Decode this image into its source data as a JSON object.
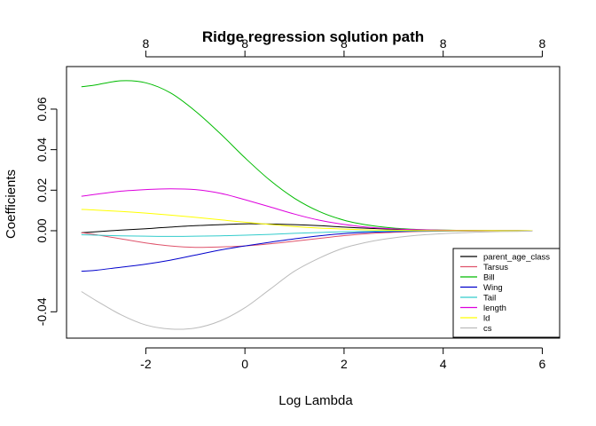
{
  "chart_data": {
    "type": "line",
    "title": "Ridge regression solution path",
    "xlabel": "Log Lambda",
    "ylabel": "Coefficients",
    "xlim": [
      -3.6,
      6.35
    ],
    "ylim": [
      -0.053,
      0.081
    ],
    "x_ticks": [
      -2,
      0,
      2,
      4,
      6
    ],
    "y_ticks": [
      -0.04,
      0.0,
      0.02,
      0.04,
      0.06
    ],
    "y_tick_labels": [
      "-0.04",
      "0.00",
      "0.02",
      "0.04",
      "0.06"
    ],
    "x_ticks_top": [
      -2,
      0,
      2,
      4,
      6
    ],
    "x_tick_labels_top": [
      "8",
      "8",
      "8",
      "8",
      "8"
    ],
    "grid": false,
    "legend_position": "bottom-right",
    "x": [
      -3.3,
      -3.0,
      -2.5,
      -2.0,
      -1.5,
      -1.0,
      -0.5,
      0.0,
      0.5,
      1.0,
      1.5,
      2.0,
      2.5,
      3.0,
      3.5,
      4.0,
      4.5,
      5.0,
      5.5,
      5.8
    ],
    "series": [
      {
        "name": "parent_age_class",
        "color": "#000000",
        "values": [
          -0.001,
          -0.0005,
          0.0003,
          0.001,
          0.0018,
          0.0025,
          0.003,
          0.0034,
          0.0033,
          0.003,
          0.0025,
          0.0018,
          0.0012,
          0.0007,
          0.0004,
          0.0002,
          0.0001,
          5e-05,
          2e-05,
          0.0
        ]
      },
      {
        "name": "Tarsus",
        "color": "#DF536B",
        "values": [
          -0.001,
          -0.002,
          -0.004,
          -0.006,
          -0.0075,
          -0.0082,
          -0.008,
          -0.0075,
          -0.0065,
          -0.0052,
          -0.0038,
          -0.0024,
          -0.0014,
          -0.0008,
          -0.0004,
          -0.0002,
          -0.0001,
          -5e-05,
          -2e-05,
          0.0
        ]
      },
      {
        "name": "Bill",
        "color": "#00BB00",
        "values": [
          0.071,
          0.072,
          0.074,
          0.073,
          0.068,
          0.059,
          0.048,
          0.036,
          0.025,
          0.016,
          0.0095,
          0.0052,
          0.0027,
          0.0013,
          0.0006,
          0.0003,
          0.00012,
          5e-05,
          2e-05,
          0.0
        ]
      },
      {
        "name": "Wing",
        "color": "#0000CC",
        "values": [
          -0.02,
          -0.0195,
          -0.018,
          -0.0165,
          -0.0145,
          -0.012,
          -0.0095,
          -0.0075,
          -0.0057,
          -0.004,
          -0.0025,
          -0.0014,
          -0.0008,
          -0.0004,
          -0.0002,
          -0.0001,
          -5e-05,
          -2e-05,
          -1e-05,
          0.0
        ]
      },
      {
        "name": "Tail",
        "color": "#33CCCC",
        "values": [
          -0.002,
          -0.0022,
          -0.0025,
          -0.0027,
          -0.0028,
          -0.0027,
          -0.0025,
          -0.0022,
          -0.0018,
          -0.0013,
          -0.0009,
          -0.0005,
          -0.0003,
          -0.00015,
          -8e-05,
          -4e-05,
          -2e-05,
          -1e-05,
          0.0,
          0.0
        ]
      },
      {
        "name": "length",
        "color": "#DD00DD",
        "values": [
          0.017,
          0.018,
          0.0195,
          0.0203,
          0.0207,
          0.0203,
          0.0185,
          0.0153,
          0.0118,
          0.0082,
          0.0052,
          0.0031,
          0.0017,
          0.0009,
          0.0005,
          0.00025,
          0.00012,
          5e-05,
          2e-05,
          0.0
        ]
      },
      {
        "name": "ld",
        "color": "#FFFF00",
        "values": [
          0.0105,
          0.0102,
          0.0095,
          0.0087,
          0.0077,
          0.0066,
          0.0054,
          0.0042,
          0.0031,
          0.0021,
          0.0013,
          0.0008,
          0.0004,
          0.0002,
          0.0001,
          5e-05,
          2e-05,
          1e-05,
          0.0,
          0.0
        ]
      },
      {
        "name": "cs",
        "color": "#BBBBBB",
        "values": [
          -0.03,
          -0.0345,
          -0.0415,
          -0.0465,
          -0.0485,
          -0.048,
          -0.0445,
          -0.038,
          -0.029,
          -0.02,
          -0.0135,
          -0.0085,
          -0.0055,
          -0.0035,
          -0.0022,
          -0.0014,
          -0.0009,
          -0.0005,
          -0.0003,
          -0.0002
        ]
      }
    ]
  }
}
